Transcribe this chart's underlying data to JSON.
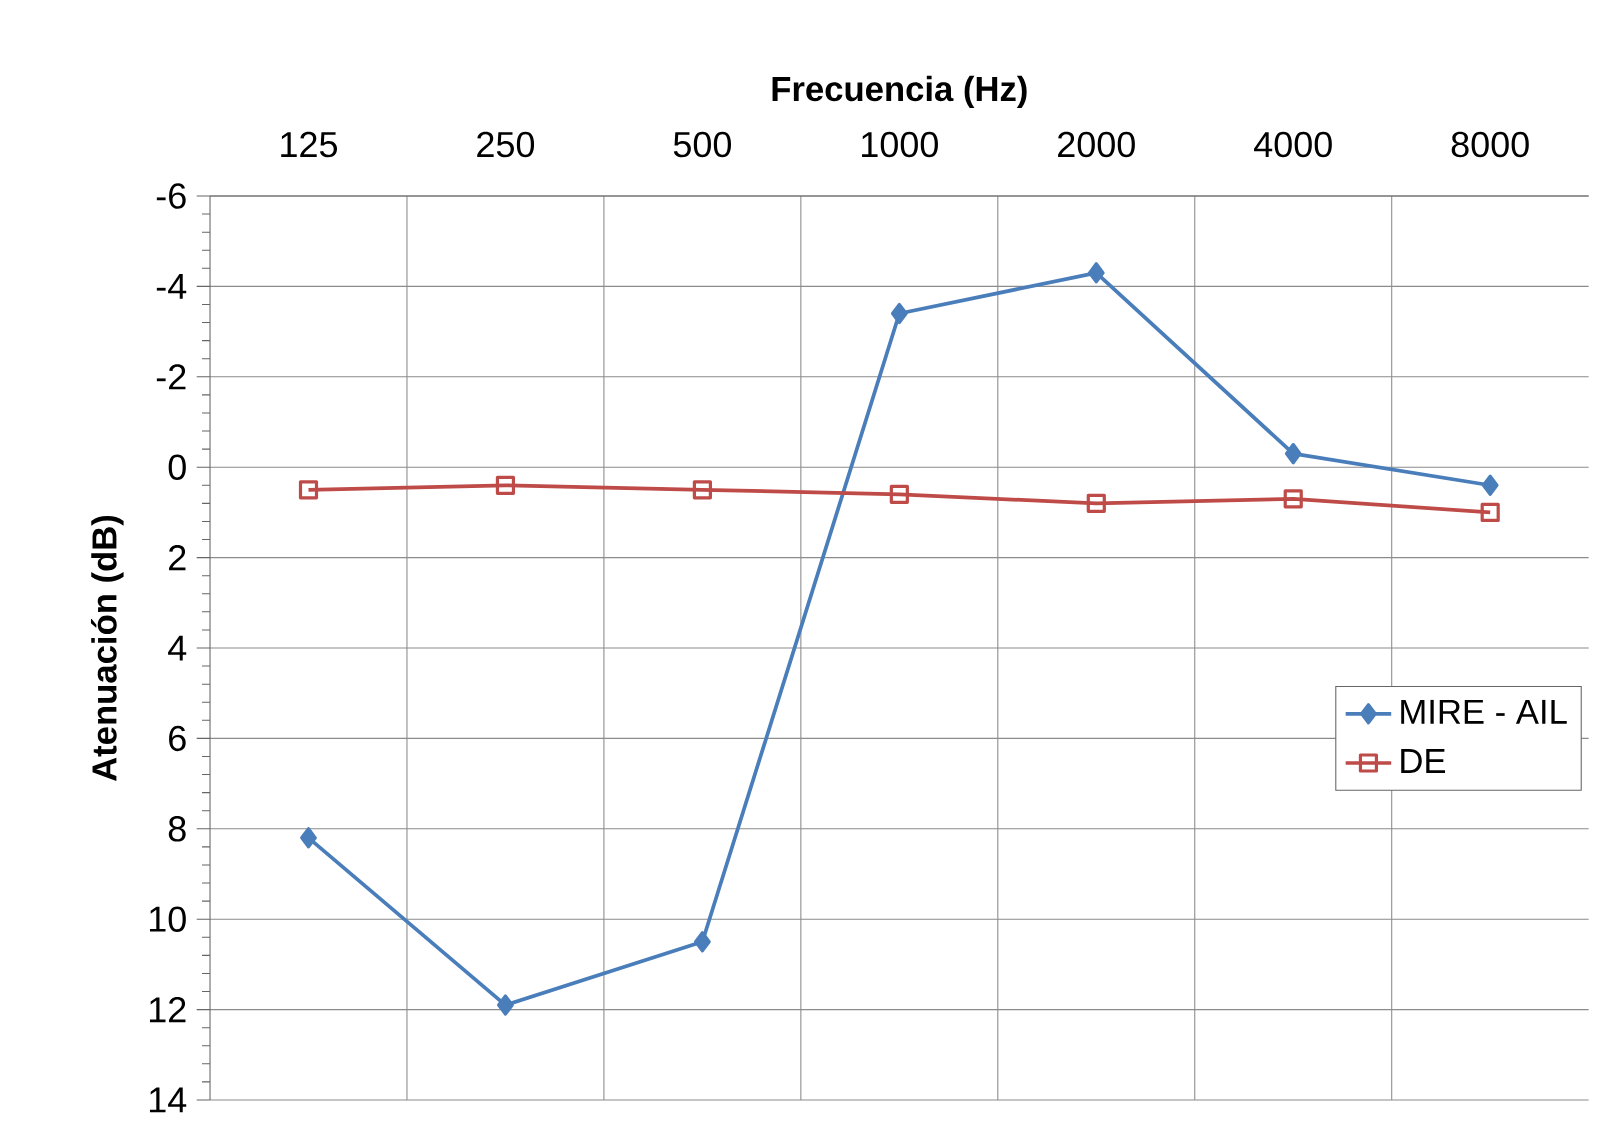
{
  "chart_data": {
    "type": "line",
    "xlabel": "Frecuencia (Hz)",
    "ylabel": "Atenuación (dB)",
    "categories": [
      "125",
      "250",
      "500",
      "1000",
      "2000",
      "4000",
      "8000"
    ],
    "series": [
      {
        "name": "MIRE - AIL",
        "color": "#4a7ebb",
        "marker": "diamond",
        "values": [
          8.2,
          11.9,
          10.5,
          -3.4,
          -4.3,
          -0.3,
          0.4
        ]
      },
      {
        "name": "DE",
        "color": "#be4b48",
        "marker": "square",
        "values": [
          0.5,
          0.4,
          0.5,
          0.6,
          0.8,
          0.7,
          1.0
        ]
      }
    ],
    "ylim": [
      14,
      -6
    ],
    "yticks": [
      -6,
      -4,
      -2,
      0,
      2,
      4,
      6,
      8,
      10,
      12,
      14
    ],
    "grid": true,
    "legend": "right"
  }
}
